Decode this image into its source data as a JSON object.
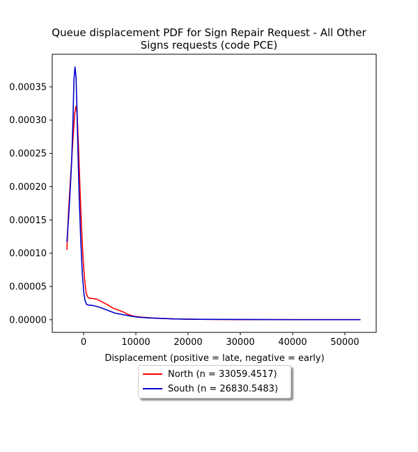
{
  "chart_data": {
    "type": "line",
    "title_line1": "Queue displacement PDF for Sign Repair Request - All Other",
    "title_line2": "Signs  requests (code PCE)",
    "xlabel": "Displacement (positive = late, negative = early)",
    "ylabel": "",
    "xlim": [
      -6000,
      56000
    ],
    "ylim": [
      -1.9e-05,
      0.000399
    ],
    "x_ticks": [
      0,
      10000,
      20000,
      30000,
      40000,
      50000
    ],
    "x_tick_labels": [
      "0",
      "10000",
      "20000",
      "30000",
      "40000",
      "50000"
    ],
    "y_ticks": [
      0,
      5e-05,
      0.0001,
      0.00015,
      0.0002,
      0.00025,
      0.0003,
      0.00035
    ],
    "y_tick_labels": [
      "0.00000",
      "0.00005",
      "0.00010",
      "0.00015",
      "0.00020",
      "0.00025",
      "0.00030",
      "0.00035"
    ],
    "grid": false,
    "legend_position": "below",
    "series": [
      {
        "name": "North (n = 33059.4517)",
        "color": "#ff0000",
        "x": [
          -3200,
          -2900,
          -2600,
          -2300,
          -2000,
          -1700,
          -1450,
          -1250,
          -1000,
          -700,
          -400,
          -100,
          200,
          500,
          800,
          1200,
          1700,
          2500,
          3500,
          4500,
          5500,
          6500,
          7500,
          8500,
          9500,
          11000,
          13000,
          15000,
          17500,
          20000,
          22500,
          26000,
          30000,
          35000,
          40000,
          45000,
          50000,
          53000
        ],
        "y": [
          0.000105,
          0.00016,
          0.0002,
          0.000238,
          0.000275,
          0.00031,
          0.000321,
          0.00031,
          0.000265,
          0.0002,
          0.00014,
          9.2e-05,
          6e-05,
          4e-05,
          3.4e-05,
          3.2e-05,
          3.2e-05,
          3.1e-05,
          2.7e-05,
          2.3e-05,
          1.8e-05,
          1.5e-05,
          1.2e-05,
          8e-06,
          5.5e-06,
          4e-06,
          2.8e-06,
          2e-06,
          1.2e-06,
          8e-07,
          6e-07,
          4e-07,
          3e-07,
          2e-07,
          1e-07,
          1e-07,
          1e-07,
          1e-07
        ]
      },
      {
        "name": "South (n = 26830.5483)",
        "color": "#0000cc",
        "x": [
          -3200,
          -2900,
          -2600,
          -2300,
          -2050,
          -1850,
          -1650,
          -1450,
          -1300,
          -1100,
          -850,
          -550,
          -250,
          50,
          300,
          600,
          900,
          1300,
          2000,
          3000,
          4000,
          5000,
          6000,
          7000,
          8000,
          9000,
          10500,
          12500,
          15000,
          17500,
          20000,
          22500,
          26000,
          30000,
          35000,
          40000,
          45000,
          50000,
          53000
        ],
        "y": [
          0.000117,
          0.00015,
          0.00019,
          0.000235,
          0.000295,
          0.00036,
          0.00038,
          0.000365,
          0.000325,
          0.00026,
          0.000185,
          0.00012,
          7e-05,
          4e-05,
          2.8e-05,
          2.3e-05,
          2.2e-05,
          2.2e-05,
          2.1e-05,
          1.9e-05,
          1.6e-05,
          1.3e-05,
          1e-05,
          8.5e-06,
          7e-06,
          5.5e-06,
          3.8e-06,
          2.8e-06,
          2e-06,
          1.2e-06,
          9e-07,
          7e-07,
          5e-07,
          4e-07,
          3e-07,
          2e-07,
          1e-07,
          1e-07,
          1e-07
        ]
      }
    ]
  }
}
